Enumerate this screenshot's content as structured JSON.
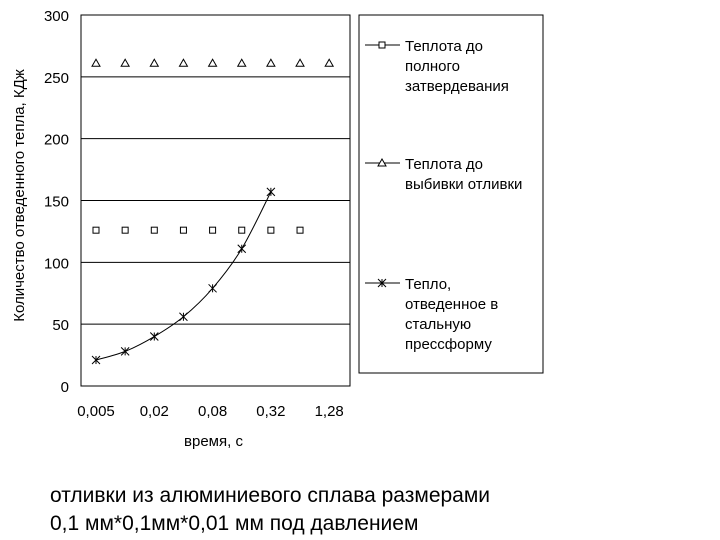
{
  "chart_data": {
    "type": "line",
    "xlabel": "время, с",
    "ylabel": "Количество отведенного тепла, КДж",
    "x_tick_labels": [
      "0,005",
      "0,02",
      "0,08",
      "0,32",
      "1,28"
    ],
    "x_scale": "log2",
    "xlim": [
      0.0035,
      2.1
    ],
    "ylim": [
      0,
      300
    ],
    "y_ticks": [
      0,
      50,
      100,
      150,
      200,
      250,
      300
    ],
    "grid": "horizontal",
    "legend_position": "right",
    "series": [
      {
        "name": "Теплота до полного затвердевания",
        "marker": "square",
        "line": false,
        "x": [
          0.005,
          0.01,
          0.02,
          0.04,
          0.08,
          0.16,
          0.32,
          0.64
        ],
        "y": [
          126,
          126,
          126,
          126,
          126,
          126,
          126,
          126
        ]
      },
      {
        "name": "Теплота до выбивки отливки",
        "marker": "triangle",
        "line": false,
        "x": [
          0.005,
          0.01,
          0.02,
          0.04,
          0.08,
          0.16,
          0.32,
          0.64,
          1.28
        ],
        "y": [
          261,
          261,
          261,
          261,
          261,
          261,
          261,
          261,
          261
        ]
      },
      {
        "name": "Тепло, отведенное в стальную прессформу",
        "marker": "star",
        "line": true,
        "x": [
          0.005,
          0.01,
          0.02,
          0.04,
          0.08,
          0.16,
          0.32
        ],
        "y": [
          21,
          28,
          40,
          56,
          79,
          111,
          157
        ]
      }
    ],
    "legend_lines": [
      [
        "Теплота до",
        "полного",
        "затвердевания"
      ],
      [
        "Теплота до",
        "выбивки отливки"
      ],
      [
        "Тепло,",
        "отведенное в",
        "стальную",
        "прессформу"
      ]
    ]
  },
  "caption": {
    "line1": "отливки  из алюминиевого сплава размерами",
    "line2": "0,1 мм*0,1мм*0,01 мм под давлением"
  }
}
